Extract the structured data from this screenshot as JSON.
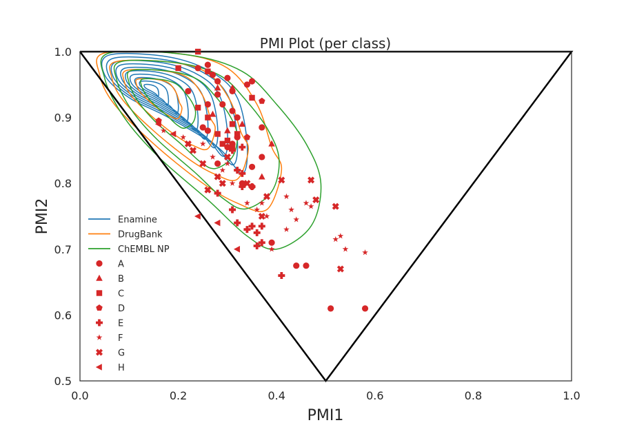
{
  "chart_data": {
    "type": "scatter",
    "title": "PMI Plot (per class)",
    "xlabel": "PMI1",
    "ylabel": "PMI2",
    "xlim": [
      0.0,
      1.0
    ],
    "ylim": [
      0.5,
      1.0
    ],
    "xticks": [
      "0.0",
      "0.2",
      "0.4",
      "0.6",
      "0.8",
      "1.0"
    ],
    "yticks": [
      "0.5",
      "0.6",
      "0.7",
      "0.8",
      "0.9",
      "1.0"
    ],
    "grid": false,
    "legend_position": "left",
    "boundary": [
      [
        0.0,
        1.0
      ],
      [
        0.5,
        0.5
      ],
      [
        1.0,
        1.0
      ],
      [
        0.0,
        1.0
      ]
    ],
    "marker_color": "#d62728",
    "density_series": [
      {
        "name": "Enamine",
        "color": "#1f77b4",
        "center": [
          0.14,
          0.945
        ],
        "levels": 10,
        "outer": [
          [
            0.06,
            0.995
          ],
          [
            0.18,
            0.992
          ],
          [
            0.27,
            0.968
          ],
          [
            0.32,
            0.93
          ],
          [
            0.34,
            0.86
          ],
          [
            0.33,
            0.815
          ],
          [
            0.28,
            0.855
          ],
          [
            0.18,
            0.9
          ],
          [
            0.1,
            0.93
          ],
          [
            0.05,
            0.965
          ]
        ]
      },
      {
        "name": "DrugBank",
        "color": "#ff7f0e",
        "center": [
          0.14,
          0.945
        ],
        "levels": 4,
        "outer": [
          [
            0.05,
            0.998
          ],
          [
            0.2,
            0.997
          ],
          [
            0.3,
            0.975
          ],
          [
            0.36,
            0.92
          ],
          [
            0.39,
            0.855
          ],
          [
            0.41,
            0.82
          ],
          [
            0.38,
            0.76
          ],
          [
            0.32,
            0.77
          ],
          [
            0.25,
            0.8
          ],
          [
            0.15,
            0.86
          ],
          [
            0.07,
            0.92
          ],
          [
            0.04,
            0.965
          ]
        ]
      },
      {
        "name": "ChEMBL NP",
        "color": "#2ca02c",
        "center": [
          0.15,
          0.945
        ],
        "levels": 4,
        "outer": [
          [
            0.06,
            0.998
          ],
          [
            0.22,
            0.995
          ],
          [
            0.33,
            0.97
          ],
          [
            0.4,
            0.92
          ],
          [
            0.46,
            0.86
          ],
          [
            0.49,
            0.8
          ],
          [
            0.47,
            0.735
          ],
          [
            0.4,
            0.7
          ],
          [
            0.34,
            0.72
          ],
          [
            0.26,
            0.775
          ],
          [
            0.16,
            0.84
          ],
          [
            0.09,
            0.9
          ],
          [
            0.05,
            0.96
          ]
        ]
      }
    ],
    "scatter_series": [
      {
        "name": "A",
        "marker": "circle",
        "points": [
          [
            0.24,
            0.975
          ],
          [
            0.26,
            0.98
          ],
          [
            0.27,
            0.965
          ],
          [
            0.3,
            0.96
          ],
          [
            0.28,
            0.955
          ],
          [
            0.31,
            0.94
          ],
          [
            0.34,
            0.95
          ],
          [
            0.35,
            0.955
          ],
          [
            0.22,
            0.94
          ],
          [
            0.26,
            0.92
          ],
          [
            0.28,
            0.935
          ],
          [
            0.31,
            0.91
          ],
          [
            0.32,
            0.9
          ],
          [
            0.37,
            0.885
          ],
          [
            0.25,
            0.885
          ],
          [
            0.26,
            0.88
          ],
          [
            0.3,
            0.855
          ],
          [
            0.31,
            0.86
          ],
          [
            0.28,
            0.83
          ],
          [
            0.35,
            0.825
          ],
          [
            0.37,
            0.84
          ],
          [
            0.33,
            0.8
          ],
          [
            0.35,
            0.795
          ],
          [
            0.39,
            0.71
          ],
          [
            0.44,
            0.675
          ],
          [
            0.46,
            0.675
          ],
          [
            0.51,
            0.61
          ],
          [
            0.58,
            0.61
          ],
          [
            0.29,
            0.92
          ],
          [
            0.32,
            0.87
          ]
        ]
      },
      {
        "name": "B",
        "marker": "triangle",
        "points": [
          [
            0.28,
            0.945
          ],
          [
            0.31,
            0.945
          ],
          [
            0.33,
            0.89
          ],
          [
            0.39,
            0.86
          ],
          [
            0.37,
            0.81
          ],
          [
            0.27,
            0.905
          ],
          [
            0.3,
            0.88
          ]
        ]
      },
      {
        "name": "C",
        "marker": "square",
        "points": [
          [
            0.24,
            1.0
          ],
          [
            0.2,
            0.975
          ],
          [
            0.26,
            0.97
          ],
          [
            0.35,
            0.93
          ],
          [
            0.24,
            0.915
          ],
          [
            0.26,
            0.9
          ],
          [
            0.31,
            0.89
          ],
          [
            0.28,
            0.875
          ],
          [
            0.29,
            0.86
          ],
          [
            0.3,
            0.865
          ],
          [
            0.31,
            0.855
          ],
          [
            0.32,
            0.875
          ]
        ]
      },
      {
        "name": "D",
        "marker": "pentagon",
        "points": [
          [
            0.37,
            0.925
          ],
          [
            0.16,
            0.895
          ],
          [
            0.34,
            0.87
          ]
        ]
      },
      {
        "name": "E",
        "marker": "plus",
        "points": [
          [
            0.32,
            0.82
          ],
          [
            0.33,
            0.815
          ],
          [
            0.33,
            0.795
          ],
          [
            0.35,
            0.795
          ],
          [
            0.28,
            0.785
          ],
          [
            0.31,
            0.76
          ],
          [
            0.32,
            0.74
          ],
          [
            0.34,
            0.73
          ],
          [
            0.35,
            0.735
          ],
          [
            0.36,
            0.725
          ],
          [
            0.37,
            0.735
          ],
          [
            0.36,
            0.705
          ],
          [
            0.37,
            0.71
          ],
          [
            0.41,
            0.66
          ],
          [
            0.33,
            0.855
          ],
          [
            0.31,
            0.85
          ]
        ]
      },
      {
        "name": "F",
        "marker": "star",
        "points": [
          [
            0.17,
            0.88
          ],
          [
            0.21,
            0.87
          ],
          [
            0.25,
            0.86
          ],
          [
            0.27,
            0.84
          ],
          [
            0.29,
            0.82
          ],
          [
            0.31,
            0.8
          ],
          [
            0.34,
            0.77
          ],
          [
            0.37,
            0.77
          ],
          [
            0.38,
            0.75
          ],
          [
            0.36,
            0.76
          ],
          [
            0.39,
            0.7
          ],
          [
            0.42,
            0.78
          ],
          [
            0.43,
            0.76
          ],
          [
            0.44,
            0.745
          ],
          [
            0.42,
            0.73
          ],
          [
            0.46,
            0.77
          ],
          [
            0.47,
            0.765
          ],
          [
            0.53,
            0.72
          ],
          [
            0.54,
            0.7
          ],
          [
            0.58,
            0.695
          ],
          [
            0.52,
            0.715
          ],
          [
            0.3,
            0.83
          ]
        ]
      },
      {
        "name": "G",
        "marker": "x",
        "points": [
          [
            0.23,
            0.85
          ],
          [
            0.25,
            0.83
          ],
          [
            0.28,
            0.81
          ],
          [
            0.29,
            0.8
          ],
          [
            0.3,
            0.84
          ],
          [
            0.34,
            0.8
          ],
          [
            0.38,
            0.78
          ],
          [
            0.41,
            0.805
          ],
          [
            0.47,
            0.805
          ],
          [
            0.52,
            0.765
          ],
          [
            0.48,
            0.775
          ],
          [
            0.53,
            0.67
          ],
          [
            0.37,
            0.75
          ],
          [
            0.22,
            0.86
          ],
          [
            0.26,
            0.79
          ]
        ]
      },
      {
        "name": "H",
        "marker": "triangle-left",
        "points": [
          [
            0.16,
            0.89
          ],
          [
            0.19,
            0.875
          ],
          [
            0.24,
            0.75
          ],
          [
            0.28,
            0.74
          ],
          [
            0.32,
            0.7
          ]
        ]
      }
    ]
  }
}
